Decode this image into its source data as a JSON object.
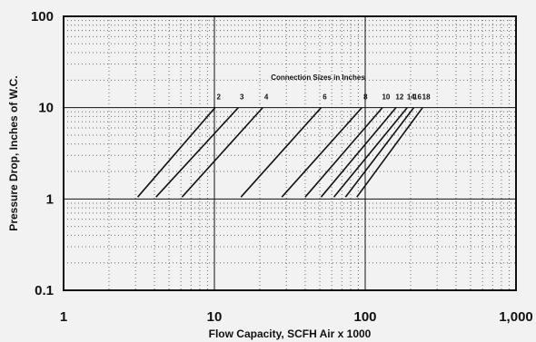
{
  "chart_data": {
    "type": "line",
    "x_scale": "log",
    "y_scale": "log",
    "xlim": [
      1,
      1000
    ],
    "ylim": [
      0.1,
      100
    ],
    "x_ticks": [
      "1",
      "10",
      "100",
      "1,000"
    ],
    "y_ticks": [
      "100",
      "10",
      "1",
      "0.1"
    ],
    "xlabel": "Flow Capacity, SCFH Air x 1000",
    "ylabel": "Pressure Drop, Inches of W.C.",
    "annotation": "Connection Sizes in Inches",
    "grid": true,
    "series": [
      {
        "name": "2",
        "x": [
          3.1,
          10.1
        ],
        "y": [
          1.05,
          10
        ]
      },
      {
        "name": "3",
        "x": [
          4.1,
          14.4
        ],
        "y": [
          1.05,
          10
        ]
      },
      {
        "name": "4",
        "x": [
          6.1,
          20.9
        ],
        "y": [
          1.05,
          10
        ]
      },
      {
        "name": "6",
        "x": [
          15.0,
          51.0
        ],
        "y": [
          1.05,
          10
        ]
      },
      {
        "name": "8",
        "x": [
          28.0,
          95.0
        ],
        "y": [
          1.05,
          10
        ]
      },
      {
        "name": "10",
        "x": [
          40.0,
          130.0
        ],
        "y": [
          1.05,
          10
        ]
      },
      {
        "name": "12",
        "x": [
          51.0,
          160.0
        ],
        "y": [
          1.05,
          10
        ]
      },
      {
        "name": "14",
        "x": [
          62.0,
          190.0
        ],
        "y": [
          1.05,
          10
        ]
      },
      {
        "name": "16",
        "x": [
          74.0,
          210.0
        ],
        "y": [
          1.05,
          10
        ]
      },
      {
        "name": "18",
        "x": [
          88.0,
          240.0
        ],
        "y": [
          1.05,
          10
        ]
      }
    ]
  }
}
